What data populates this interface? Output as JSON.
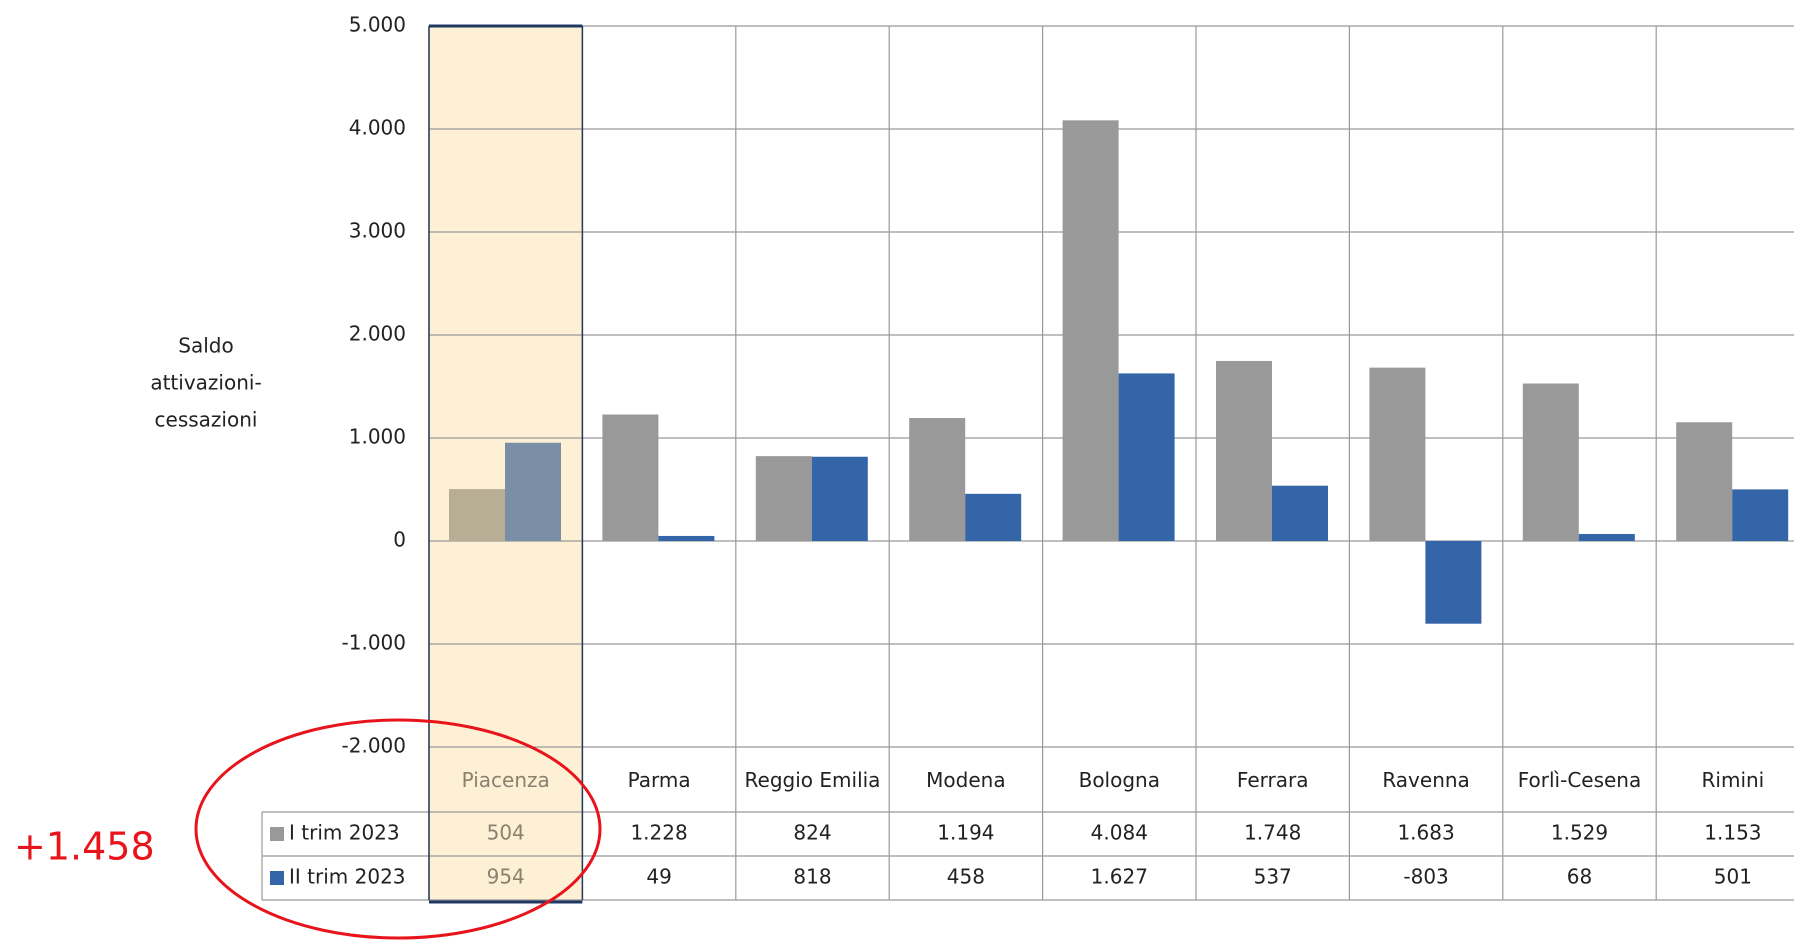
{
  "chart_data": {
    "type": "bar",
    "y_label": [
      "Saldo",
      "attivazioni-",
      "cessazioni"
    ],
    "categories": [
      "Piacenza",
      "Parma",
      "Reggio Emilia",
      "Modena",
      "Bologna",
      "Ferrara",
      "Ravenna",
      "Forlì-Cesena",
      "Rimini"
    ],
    "series": [
      {
        "name": "I trim 2023",
        "color": "#999999",
        "values": [
          504,
          1228,
          824,
          1194,
          4084,
          1748,
          1683,
          1529,
          1153
        ],
        "value_labels": [
          "504",
          "1.228",
          "824",
          "1.194",
          "4.084",
          "1.748",
          "1.683",
          "1.529",
          "1.153"
        ]
      },
      {
        "name": "II trim 2023",
        "color": "#3465a8",
        "values": [
          954,
          49,
          818,
          458,
          1627,
          537,
          -803,
          68,
          501
        ],
        "value_labels": [
          "954",
          "49",
          "818",
          "458",
          "1.627",
          "537",
          "-803",
          "68",
          "501"
        ]
      }
    ],
    "ylim": [
      -2000,
      5000
    ],
    "yticks": [
      {
        "value": -2000,
        "label": "-2.000"
      },
      {
        "value": -1000,
        "label": "-1.000"
      },
      0,
      {
        "value": 1000,
        "label": "1.000"
      },
      {
        "value": 2000,
        "label": "2.000"
      },
      {
        "value": 3000,
        "label": "3.000"
      },
      {
        "value": 4000,
        "label": "4.000"
      },
      {
        "value": 5000,
        "label": "5.000"
      }
    ],
    "grid": true,
    "annotation": "+1.458"
  }
}
